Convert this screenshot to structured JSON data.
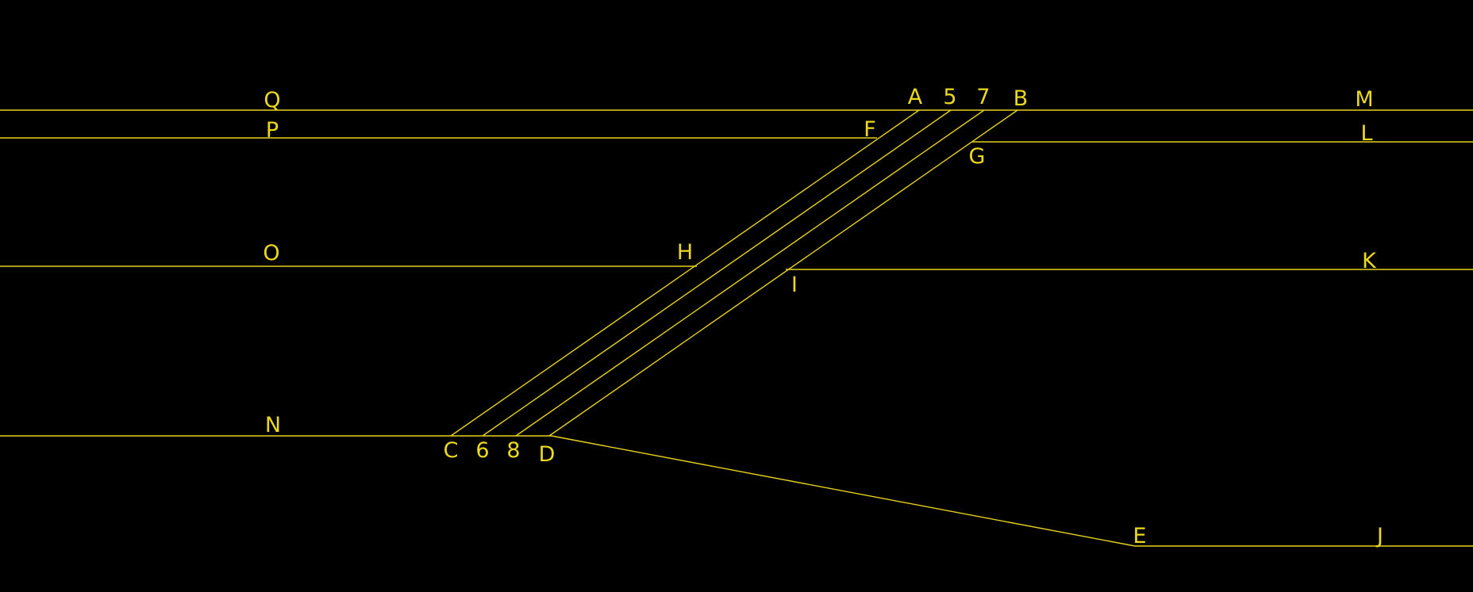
{
  "colors": {
    "background": "#000000",
    "line": "#e6d11f",
    "label": "#ecd91e"
  },
  "labels": {
    "Q": "Q",
    "P": "P",
    "O": "O",
    "N": "N",
    "A": "A",
    "five": "5",
    "seven": "7",
    "B": "B",
    "M": "M",
    "L": "L",
    "F": "F",
    "G": "G",
    "H": "H",
    "K": "K",
    "I": "I",
    "C": "C",
    "six": "6",
    "eight": "8",
    "D": "D",
    "E": "E",
    "J": "J"
  }
}
